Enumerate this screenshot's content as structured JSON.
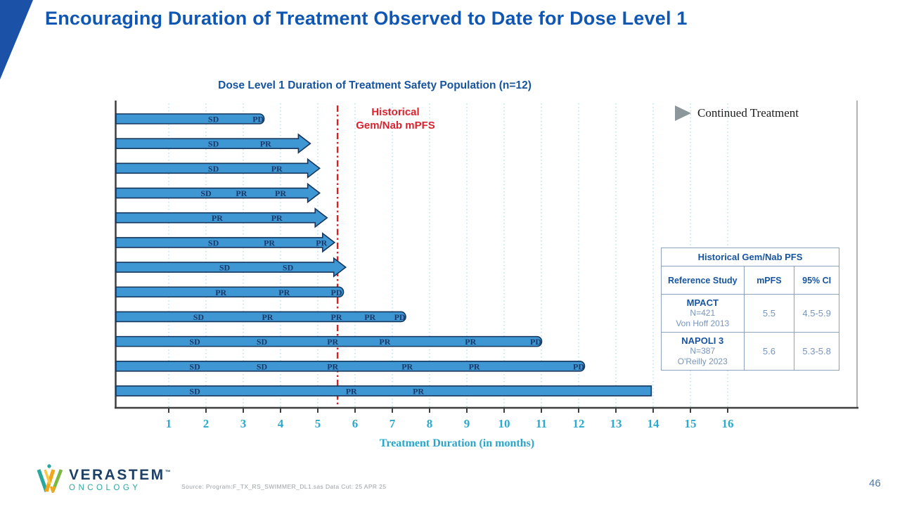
{
  "slide": {
    "title": "Encouraging Duration of Treatment Observed to Date for Dose Level 1",
    "page_number": "46",
    "source_note": "Source: Program:F_TX_RS_SWIMMER_DL1.sas  Data Cut: 25 APR 25",
    "accent_color": "#1b52a8"
  },
  "logo": {
    "name": "VERASTEM",
    "tm": "™",
    "sub": "ONCOLOGY"
  },
  "chart_data": {
    "type": "bar",
    "subtype": "swimmer-plot",
    "title": "Dose Level 1 Duration of Treatment Safety Population (n=12)",
    "xlabel": "Treatment Duration (in months)",
    "xlim": [
      0,
      16.6
    ],
    "x_ticks": [
      1,
      2,
      3,
      4,
      5,
      6,
      7,
      8,
      9,
      10,
      11,
      12,
      13,
      14,
      15,
      16
    ],
    "grid": "vertical-dotted",
    "bar_color": "#3e96d2",
    "bar_border_color": "#17375e",
    "grid_color": "#a8daec",
    "tick_label_color": "#2ba9ce",
    "reference_line": {
      "x": 5.53,
      "color": "#e02020",
      "label_line1": "Historical",
      "label_line2": "Gem/Nab mPFS"
    },
    "legend": {
      "marker": "continued-arrow",
      "marker_color": "#8c979c",
      "label": "Continued Treatment"
    },
    "bars": [
      {
        "id": 1,
        "duration": 3.55,
        "end": "progressed",
        "milestones": [
          {
            "label": "SD",
            "month": 2.2
          },
          {
            "label": "PD",
            "month": 3.4
          }
        ]
      },
      {
        "id": 2,
        "duration": 4.8,
        "end": "continued",
        "milestones": [
          {
            "label": "SD",
            "month": 2.2
          },
          {
            "label": "PR",
            "month": 3.6
          }
        ]
      },
      {
        "id": 3,
        "duration": 5.05,
        "end": "continued",
        "milestones": [
          {
            "label": "SD",
            "month": 2.2
          },
          {
            "label": "PR",
            "month": 3.9
          }
        ]
      },
      {
        "id": 4,
        "duration": 5.05,
        "end": "continued",
        "milestones": [
          {
            "label": "SD",
            "month": 2.0
          },
          {
            "label": "PR",
            "month": 2.95
          },
          {
            "label": "PR",
            "month": 4.0
          }
        ]
      },
      {
        "id": 5,
        "duration": 5.25,
        "end": "continued",
        "milestones": [
          {
            "label": "PR",
            "month": 2.3
          },
          {
            "label": "PR",
            "month": 3.9
          }
        ]
      },
      {
        "id": 6,
        "duration": 5.45,
        "end": "continued",
        "milestones": [
          {
            "label": "SD",
            "month": 2.2
          },
          {
            "label": "PR",
            "month": 3.7
          },
          {
            "label": "PR",
            "month": 5.1
          }
        ]
      },
      {
        "id": 7,
        "duration": 5.75,
        "end": "continued",
        "milestones": [
          {
            "label": "SD",
            "month": 2.5
          },
          {
            "label": "SD",
            "month": 4.2
          }
        ]
      },
      {
        "id": 8,
        "duration": 5.68,
        "end": "progressed",
        "milestones": [
          {
            "label": "PR",
            "month": 2.4
          },
          {
            "label": "PR",
            "month": 4.1
          },
          {
            "label": "PD",
            "month": 5.5
          }
        ]
      },
      {
        "id": 9,
        "duration": 7.35,
        "end": "progressed",
        "milestones": [
          {
            "label": "SD",
            "month": 1.8
          },
          {
            "label": "PR",
            "month": 3.65
          },
          {
            "label": "PR",
            "month": 5.5
          },
          {
            "label": "PR",
            "month": 6.4
          },
          {
            "label": "PD",
            "month": 7.2
          }
        ]
      },
      {
        "id": 10,
        "duration": 11.0,
        "end": "progressed",
        "milestones": [
          {
            "label": "SD",
            "month": 1.7
          },
          {
            "label": "SD",
            "month": 3.5
          },
          {
            "label": "PR",
            "month": 5.4
          },
          {
            "label": "PR",
            "month": 6.8
          },
          {
            "label": "PR",
            "month": 9.1
          },
          {
            "label": "PD",
            "month": 10.85
          }
        ]
      },
      {
        "id": 11,
        "duration": 12.15,
        "end": "progressed",
        "milestones": [
          {
            "label": "SD",
            "month": 1.7
          },
          {
            "label": "SD",
            "month": 3.5
          },
          {
            "label": "PR",
            "month": 5.4
          },
          {
            "label": "PR",
            "month": 7.4
          },
          {
            "label": "PR",
            "month": 9.2
          },
          {
            "label": "PD",
            "month": 12.0
          }
        ]
      },
      {
        "id": 12,
        "duration": 13.95,
        "end": "ongoing",
        "milestones": [
          {
            "label": "SD",
            "month": 1.7
          },
          {
            "label": "PR",
            "month": 5.9
          },
          {
            "label": "PR",
            "month": 7.7
          }
        ]
      }
    ]
  },
  "table": {
    "title": "Historical Gem/Nab PFS",
    "columns": [
      "Reference Study",
      "mPFS",
      "95% CI"
    ],
    "rows": [
      {
        "study": "MPACT",
        "n": "N=421",
        "ref": "Von Hoff 2013",
        "mpfs": "5.5",
        "ci": "4.5-5.9"
      },
      {
        "study": "NAPOLI 3",
        "n": "N=387",
        "ref": "O'Reilly 2023",
        "mpfs": "5.6",
        "ci": "5.3-5.8"
      }
    ]
  }
}
